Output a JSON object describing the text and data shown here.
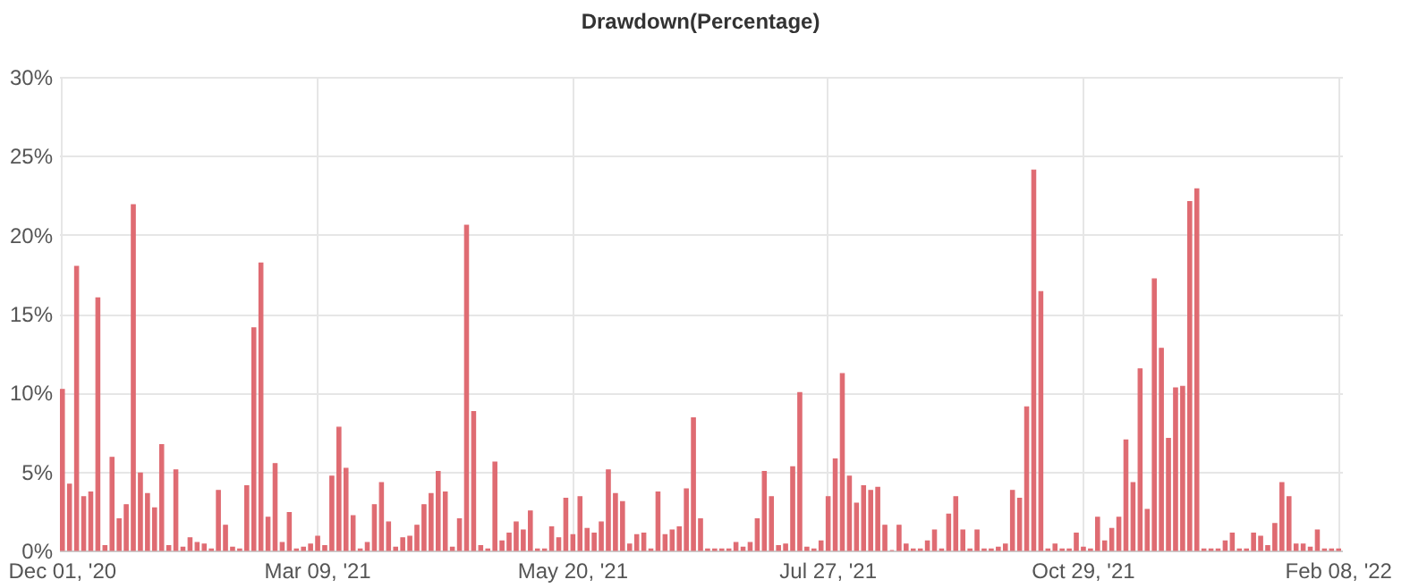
{
  "chart_data": {
    "type": "bar",
    "title": "Drawdown(Percentage)",
    "categories": [
      "Dec 01, '20",
      null,
      null,
      null,
      null,
      null,
      null,
      null,
      null,
      null,
      null,
      null,
      null,
      null,
      null,
      null,
      null,
      null,
      null,
      null,
      null,
      null,
      null,
      null,
      null,
      null,
      null,
      null,
      null,
      null,
      null,
      null,
      null,
      null,
      null,
      null,
      "Mar 09, '21",
      null,
      null,
      null,
      null,
      null,
      null,
      null,
      null,
      null,
      null,
      null,
      null,
      null,
      null,
      null,
      null,
      null,
      null,
      null,
      null,
      null,
      null,
      null,
      null,
      null,
      null,
      null,
      null,
      null,
      null,
      null,
      null,
      null,
      null,
      null,
      "May 20, '21",
      null,
      null,
      null,
      null,
      null,
      null,
      null,
      null,
      null,
      null,
      null,
      null,
      null,
      null,
      null,
      null,
      null,
      null,
      null,
      null,
      null,
      null,
      null,
      null,
      null,
      null,
      null,
      null,
      null,
      null,
      null,
      null,
      null,
      null,
      null,
      "Jul 27, '21",
      null,
      null,
      null,
      null,
      null,
      null,
      null,
      null,
      null,
      null,
      null,
      null,
      null,
      null,
      null,
      null,
      null,
      null,
      null,
      null,
      null,
      null,
      null,
      null,
      null,
      null,
      null,
      null,
      null,
      null,
      null,
      null,
      null,
      null,
      null,
      "Oct 29, '21",
      null,
      null,
      null,
      null,
      null,
      null,
      null,
      null,
      null,
      null,
      null,
      null,
      null,
      null,
      null,
      null,
      null,
      null,
      null,
      null,
      null,
      null,
      null,
      null,
      null,
      null,
      null,
      null,
      null,
      null,
      null,
      null,
      null,
      null,
      null,
      "Feb 08, '22"
    ],
    "values": [
      10.2,
      4.2,
      18,
      3.4,
      3.7,
      16,
      0.3,
      5.9,
      2.0,
      2.9,
      21.9,
      4.9,
      3.6,
      2.7,
      6.7,
      0.3,
      5.1,
      0.2,
      0.8,
      0.5,
      0.4,
      0.1,
      3.8,
      1.6,
      0.2,
      0.1,
      4.1,
      14.1,
      18.2,
      2.1,
      5.5,
      0.5,
      2.4,
      0.1,
      0.2,
      0.4,
      0.9,
      0.3,
      4.7,
      7.8,
      5.2,
      2.2,
      0.1,
      0.5,
      2.9,
      4.3,
      1.8,
      0.2,
      0.8,
      0.9,
      1.6,
      2.9,
      3.6,
      5.0,
      3.7,
      0.2,
      2.0,
      20.6,
      8.8,
      0.3,
      0.1,
      5.6,
      0.6,
      1.1,
      1.8,
      1.3,
      2.5,
      0.1,
      0.1,
      1.5,
      0.8,
      3.3,
      1.0,
      3.4,
      1.4,
      1.1,
      1.8,
      5.1,
      3.6,
      3.1,
      0.4,
      1.0,
      1.1,
      0.1,
      3.7,
      1.0,
      1.3,
      1.5,
      3.9,
      8.4,
      2.0,
      0.1,
      0.1,
      0.1,
      0.1,
      0.5,
      0.2,
      0.5,
      2.0,
      5.0,
      3.4,
      0.3,
      0.4,
      5.3,
      10.0,
      0.2,
      0.1,
      0.6,
      3.4,
      5.8,
      11.2,
      4.7,
      3.0,
      4.1,
      3.8,
      4.0,
      1.6,
      0,
      1.6,
      0.4,
      0.1,
      0.1,
      0.6,
      1.3,
      0.1,
      2.3,
      3.4,
      1.3,
      0.1,
      1.3,
      0.1,
      0.1,
      0.2,
      0.4,
      3.8,
      3.3,
      9.1,
      24.1,
      16.4,
      0.1,
      0.4,
      0.1,
      0.1,
      1.1,
      0.2,
      0.1,
      2.1,
      0.6,
      1.4,
      2.1,
      7.0,
      4.3,
      11.5,
      2.6,
      17.2,
      12.8,
      7.1,
      10.3,
      10.4,
      22.1,
      22.9,
      0.1,
      0.1,
      0.1,
      0.6,
      1.1,
      0.1,
      0.1,
      1.1,
      0.9,
      0.3,
      1.7,
      4.3,
      3.4,
      0.4,
      0.4,
      0.2,
      1.3,
      0.1,
      0.1,
      0.1
    ],
    "color": "#df6b72",
    "ylim": [
      0,
      30
    ],
    "yticks": [
      {
        "value": 0,
        "label": "0%"
      },
      {
        "value": 5,
        "label": "5%"
      },
      {
        "value": 10,
        "label": "10%"
      },
      {
        "value": 15,
        "label": "15%"
      },
      {
        "value": 20,
        "label": "20%"
      },
      {
        "value": 25,
        "label": "25%"
      },
      {
        "value": 30,
        "label": "30%"
      }
    ],
    "grid": true
  }
}
